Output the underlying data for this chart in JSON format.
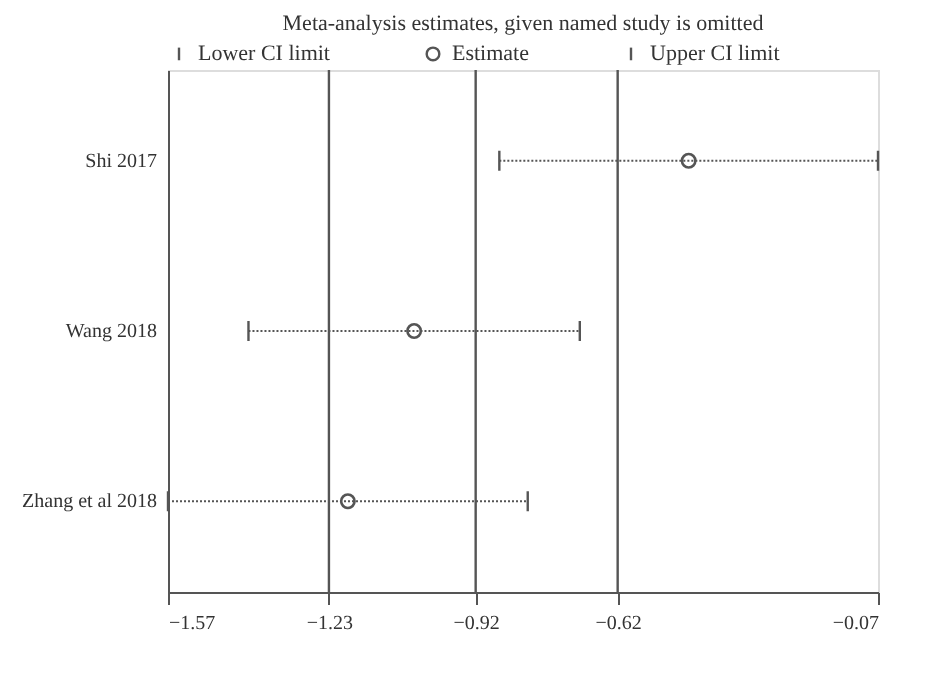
{
  "chart_data": {
    "type": "scatter",
    "orientation": "horizontal",
    "title": "Meta-analysis estimates, given named study is omitted",
    "categories": [
      "Shi 2017",
      "Wang 2018",
      "Zhang et al 2018"
    ],
    "series": [
      {
        "name": "Estimate",
        "color": "#555555",
        "marker": "circle",
        "line_style": "dotted",
        "values": [
          -0.47,
          -1.05,
          -1.19
        ],
        "errors": [
          [
            -0.87,
            -0.07
          ],
          [
            -1.4,
            -0.7
          ],
          [
            -1.57,
            -0.81
          ]
        ]
      }
    ],
    "annotations": [
      "Lower CI limit",
      "Upper CI limit"
    ],
    "xlim": [
      -1.57,
      -0.07
    ],
    "xticks": [
      {
        "value": -1.57,
        "label": "−1.57"
      },
      {
        "value": -1.23,
        "label": "−1.23"
      },
      {
        "value": -0.92,
        "label": "−0.92"
      },
      {
        "value": -0.62,
        "label": "−0.62"
      },
      {
        "value": -0.07,
        "label": "−0.07"
      }
    ],
    "ref_lines": [
      {
        "axis": "x",
        "value": -1.23,
        "color": "#555555"
      },
      {
        "axis": "x",
        "value": -0.92,
        "color": "#555555"
      },
      {
        "axis": "x",
        "value": -0.62,
        "color": "#555555"
      }
    ],
    "legend": "top",
    "grid": false
  }
}
